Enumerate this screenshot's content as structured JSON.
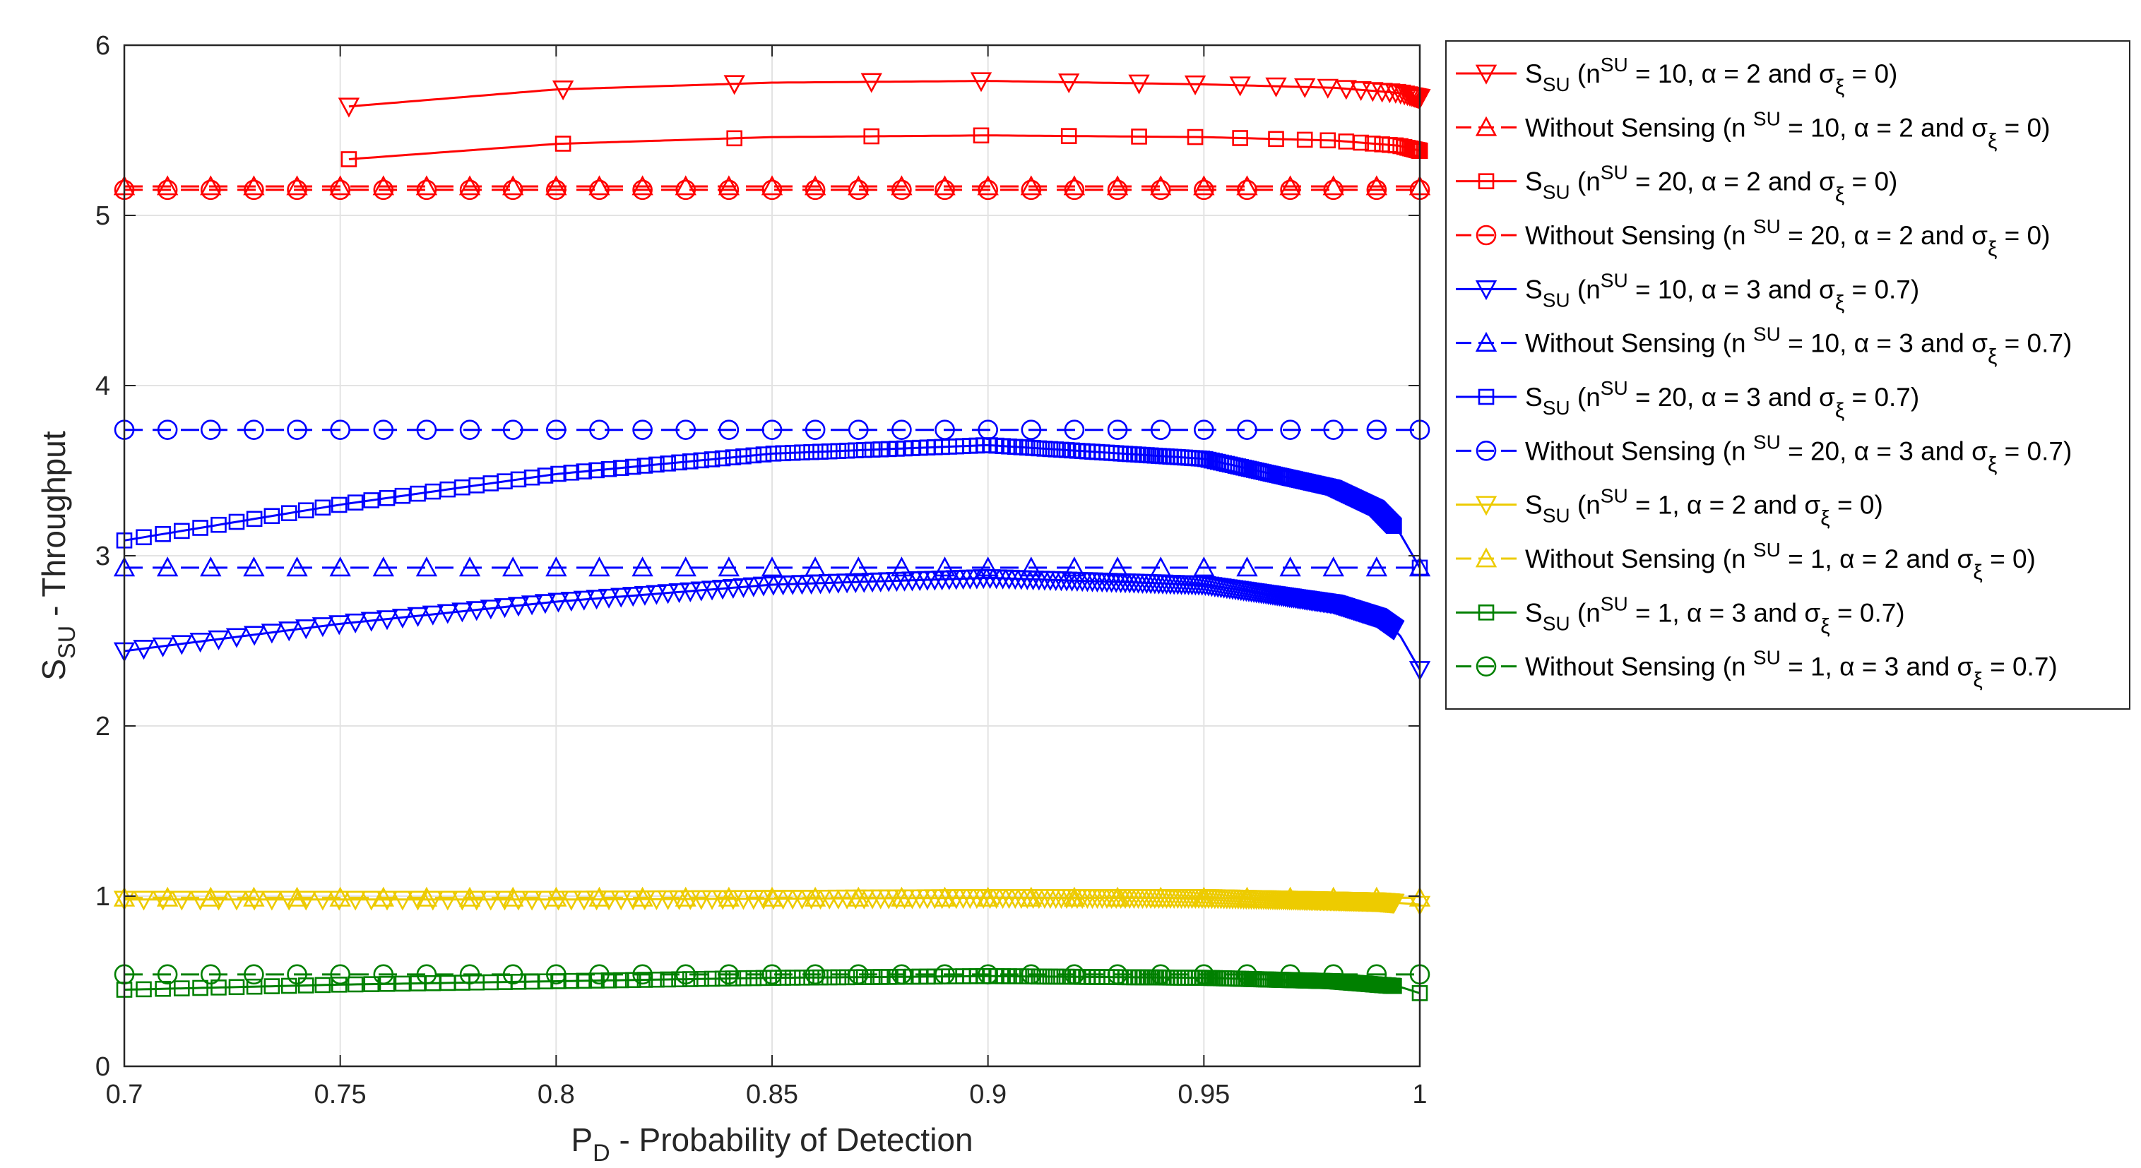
{
  "chart_data": {
    "type": "line",
    "xlabel": "P_D - Probability of Detection",
    "ylabel": "S_SU - Throughput",
    "xlim": [
      0.7,
      1.0
    ],
    "ylim": [
      0,
      6
    ],
    "grid": true,
    "legend_position": "outside-right",
    "xticks": [
      "0.7",
      "0.75",
      "0.8",
      "0.85",
      "0.9",
      "0.95",
      "1"
    ],
    "yticks": [
      "0",
      "1",
      "2",
      "3",
      "4",
      "5",
      "6"
    ],
    "series": [
      {
        "name": "S_SU (n^SU = 10, α = 2 and σ_ξ = 0)",
        "color": "#ff0000",
        "marker": "triangle-down",
        "dashed": false,
        "x": [
          0.752,
          0.8,
          0.85,
          0.9,
          0.95,
          0.98,
          0.995,
          1.0
        ],
        "y": [
          5.64,
          5.74,
          5.78,
          5.79,
          5.77,
          5.75,
          5.72,
          5.69
        ]
      },
      {
        "name": "Without Sensing (n SU = 10, α = 2 and σ_ξ = 0)",
        "color": "#ff0000",
        "marker": "triangle-up",
        "dashed": true,
        "x": [
          0.7,
          1.0
        ],
        "y": [
          5.17,
          5.17
        ]
      },
      {
        "name": "S_SU (n^SU = 20, α = 2 and σ_ξ = 0)",
        "color": "#ff0000",
        "marker": "square",
        "dashed": false,
        "x": [
          0.752,
          0.8,
          0.85,
          0.9,
          0.95,
          0.98,
          0.995,
          1.0
        ],
        "y": [
          5.33,
          5.42,
          5.46,
          5.47,
          5.46,
          5.44,
          5.41,
          5.38
        ]
      },
      {
        "name": "Without Sensing (n SU = 20, α = 2 and σ_ξ = 0)",
        "color": "#ff0000",
        "marker": "circle",
        "dashed": true,
        "x": [
          0.7,
          1.0
        ],
        "y": [
          5.15,
          5.15
        ]
      },
      {
        "name": "S_SU (n^SU = 10, α = 3 and σ_ξ = 0.7)",
        "color": "#0000ff",
        "marker": "triangle-down",
        "dashed": false,
        "x": [
          0.7,
          0.75,
          0.8,
          0.85,
          0.9,
          0.95,
          0.98,
          0.99,
          0.995,
          1.0
        ],
        "y": [
          2.44,
          2.6,
          2.73,
          2.83,
          2.87,
          2.83,
          2.72,
          2.64,
          2.55,
          2.33
        ]
      },
      {
        "name": "Without Sensing (n SU = 10, α = 3 and σ_ξ = 0.7)",
        "color": "#0000ff",
        "marker": "triangle-up",
        "dashed": true,
        "x": [
          0.7,
          1.0
        ],
        "y": [
          2.93,
          2.93
        ]
      },
      {
        "name": "S_SU (n^SU = 20, α = 3 and σ_ξ = 0.7)",
        "color": "#0000ff",
        "marker": "square",
        "dashed": false,
        "x": [
          0.7,
          0.75,
          0.8,
          0.85,
          0.9,
          0.95,
          0.98,
          0.99,
          0.995,
          1.0
        ],
        "y": [
          3.09,
          3.3,
          3.48,
          3.6,
          3.65,
          3.57,
          3.4,
          3.28,
          3.15,
          2.93
        ]
      },
      {
        "name": "Without Sensing (n SU = 20, α = 3 and σ_ξ = 0.7)",
        "color": "#0000ff",
        "marker": "circle",
        "dashed": true,
        "x": [
          0.7,
          1.0
        ],
        "y": [
          3.74,
          3.74
        ]
      },
      {
        "name": "S_SU (n^SU = 1, α = 2 and σ_ξ = 0)",
        "color": "#edcb00",
        "marker": "triangle-down",
        "dashed": false,
        "x": [
          0.7,
          0.8,
          0.9,
          0.95,
          0.99,
          1.0
        ],
        "y": [
          0.98,
          0.98,
          0.99,
          0.99,
          0.97,
          0.95
        ]
      },
      {
        "name": "Without Sensing (n SU = 1, α = 2 and σ_ξ = 0)",
        "color": "#edcb00",
        "marker": "triangle-up",
        "dashed": true,
        "x": [
          0.7,
          1.0
        ],
        "y": [
          0.99,
          0.99
        ]
      },
      {
        "name": "S_SU (n^SU = 1, α = 3 and σ_ξ = 0.7)",
        "color": "#008000",
        "marker": "square",
        "dashed": false,
        "x": [
          0.7,
          0.75,
          0.8,
          0.85,
          0.9,
          0.95,
          0.98,
          0.995,
          1.0
        ],
        "y": [
          0.45,
          0.48,
          0.5,
          0.52,
          0.53,
          0.52,
          0.5,
          0.47,
          0.43
        ]
      },
      {
        "name": "Without Sensing (n SU = 1, α = 3 and σ_ξ = 0.7)",
        "color": "#008000",
        "marker": "circle",
        "dashed": true,
        "x": [
          0.7,
          1.0
        ],
        "y": [
          0.54,
          0.54
        ]
      }
    ],
    "legend_entries": [
      {
        "prefix": "S",
        "sub": "SU",
        "mid": " (n",
        "sup": "SU",
        "rest": " = 10, α = 2 and  σ",
        "sub2": "ξ",
        "tail": " = 0)"
      },
      {
        "prefix": "Without Sensing (n ",
        "sub": "",
        "mid": "",
        "sup": "SU",
        "rest": " = 10, α = 2 and  σ",
        "sub2": "ξ",
        "tail": " = 0)"
      },
      {
        "prefix": "S",
        "sub": "SU",
        "mid": " (n",
        "sup": "SU",
        "rest": " = 20, α = 2 and  σ",
        "sub2": "ξ",
        "tail": " = 0)"
      },
      {
        "prefix": "Without Sensing (n ",
        "sub": "",
        "mid": "",
        "sup": "SU",
        "rest": " = 20, α = 2 and  σ",
        "sub2": "ξ",
        "tail": " = 0)"
      },
      {
        "prefix": "S",
        "sub": "SU",
        "mid": " (n",
        "sup": "SU",
        "rest": " = 10, α = 3 and  σ",
        "sub2": "ξ",
        "tail": " = 0.7)"
      },
      {
        "prefix": "Without Sensing (n ",
        "sub": "",
        "mid": "",
        "sup": "SU",
        "rest": " = 10, α = 3 and  σ",
        "sub2": "ξ",
        "tail": " = 0.7)"
      },
      {
        "prefix": "S",
        "sub": "SU",
        "mid": " (n",
        "sup": "SU",
        "rest": " = 20, α = 3 and  σ",
        "sub2": "ξ",
        "tail": " = 0.7)"
      },
      {
        "prefix": "Without Sensing (n ",
        "sub": "",
        "mid": "",
        "sup": "SU",
        "rest": " = 20, α = 3 and  σ",
        "sub2": "ξ",
        "tail": " = 0.7)"
      },
      {
        "prefix": "S",
        "sub": "SU",
        "mid": " (n",
        "sup": "SU",
        "rest": " = 1, α = 2 and  σ",
        "sub2": "ξ",
        "tail": " = 0)"
      },
      {
        "prefix": "Without Sensing (n ",
        "sub": "",
        "mid": "",
        "sup": "SU",
        "rest": " = 1, α = 2 and  σ",
        "sub2": "ξ",
        "tail": " = 0)"
      },
      {
        "prefix": "S",
        "sub": "SU",
        "mid": " (n",
        "sup": "SU",
        "rest": " = 1, α = 3 and  σ",
        "sub2": "ξ",
        "tail": " = 0.7)"
      },
      {
        "prefix": "Without Sensing (n ",
        "sub": "",
        "mid": "",
        "sup": "SU",
        "rest": " = 1, α = 3 and  σ",
        "sub2": "ξ",
        "tail": " = 0.7)"
      }
    ]
  }
}
